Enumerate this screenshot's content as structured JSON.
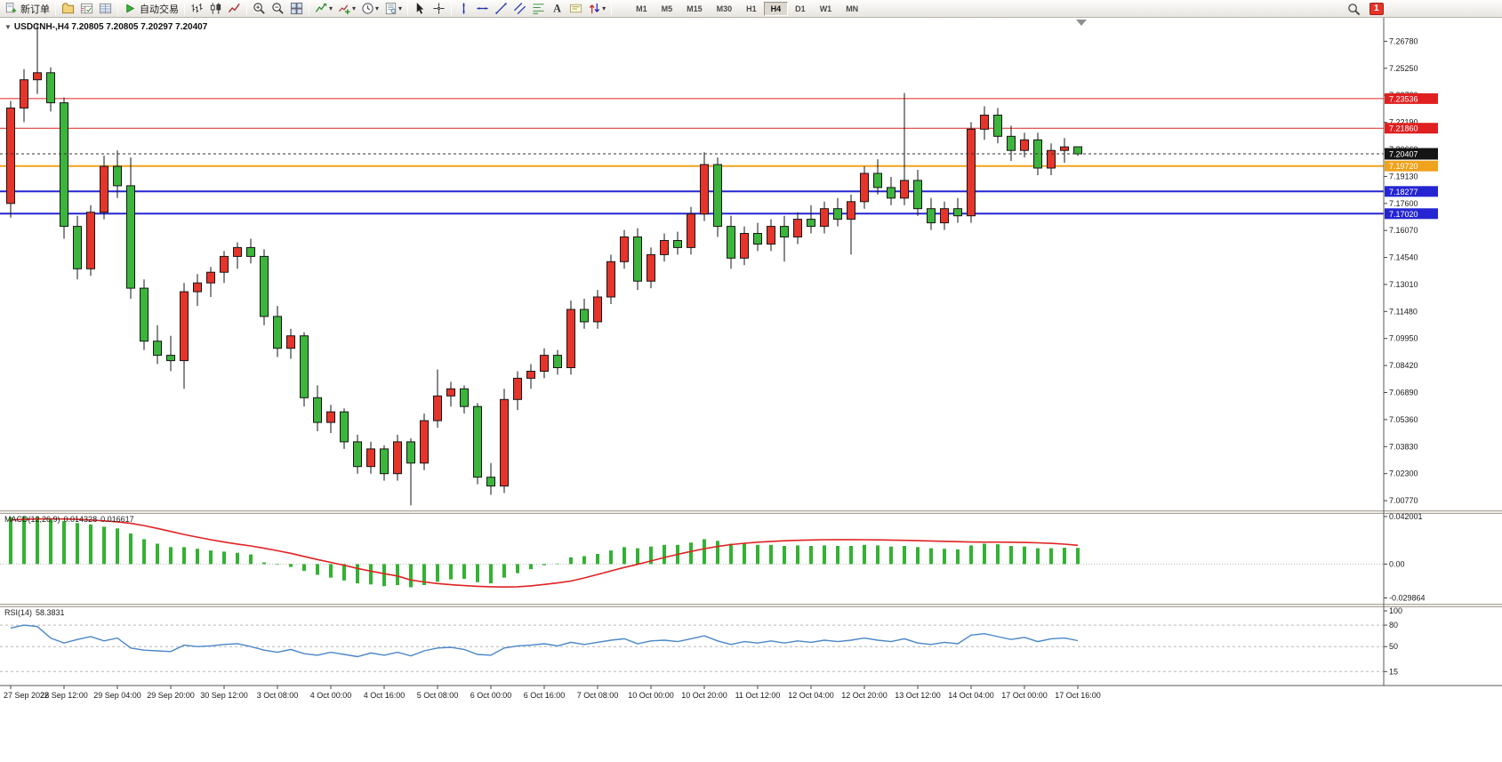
{
  "toolbar": {
    "items": [
      {
        "type": "button",
        "name": "new-order-button",
        "icon": "new-order-icon",
        "label": "新订单"
      },
      {
        "type": "separator"
      },
      {
        "type": "button",
        "name": "profiles-button",
        "icon": "profile-icon"
      },
      {
        "type": "button",
        "name": "market-watch-button",
        "icon": "market-watch-icon"
      },
      {
        "type": "button",
        "name": "data-window-button",
        "icon": "data-window-icon"
      },
      {
        "type": "separator"
      },
      {
        "type": "button",
        "name": "auto-trading-button",
        "icon": "play-icon",
        "label": "自动交易"
      },
      {
        "type": "separator"
      },
      {
        "type": "button",
        "name": "bar-chart-button",
        "icon": "bar-chart-icon"
      },
      {
        "type": "button",
        "name": "candlestick-chart-button",
        "icon": "candlestick-icon"
      },
      {
        "type": "button",
        "name": "line-chart-button",
        "icon": "line-chart-icon"
      },
      {
        "type": "separator"
      },
      {
        "type": "button",
        "name": "zoom-in-button",
        "icon": "zoom-in-icon"
      },
      {
        "type": "button",
        "name": "zoom-out-button",
        "icon": "zoom-out-icon"
      },
      {
        "type": "button",
        "name": "tile-windows-button",
        "icon": "tile-windows-icon"
      },
      {
        "type": "separator"
      },
      {
        "type": "button",
        "name": "indicators-button",
        "icon": "indicators-icon",
        "dropdown": true
      },
      {
        "type": "button",
        "name": "add-indicator-button",
        "icon": "add-indicator-icon",
        "dropdown": true
      },
      {
        "type": "button",
        "name": "period-selector-button",
        "icon": "clock-icon",
        "dropdown": true
      },
      {
        "type": "button",
        "name": "templates-button",
        "icon": "template-icon",
        "dropdown": true
      },
      {
        "type": "separator"
      },
      {
        "type": "button",
        "name": "cursor-button",
        "icon": "cursor-icon"
      },
      {
        "type": "button",
        "name": "crosshair-button",
        "icon": "crosshair-icon"
      },
      {
        "type": "separator"
      },
      {
        "type": "button",
        "name": "vertical-line-button",
        "icon": "vertical-line-icon"
      },
      {
        "type": "button",
        "name": "horizontal-line-button",
        "icon": "horizontal-line-icon"
      },
      {
        "type": "button",
        "name": "trendline-button",
        "icon": "trendline-icon"
      },
      {
        "type": "button",
        "name": "channel-button",
        "icon": "channel-icon"
      },
      {
        "type": "button",
        "name": "fibonacci-button",
        "icon": "fibonacci-icon"
      },
      {
        "type": "button",
        "name": "text-button",
        "icon": "text-icon"
      },
      {
        "type": "button",
        "name": "text-label-button",
        "icon": "text-label-icon"
      },
      {
        "type": "button",
        "name": "arrows-button",
        "icon": "arrows-icon",
        "dropdown": true
      },
      {
        "type": "separator"
      }
    ],
    "timeframes": [
      "M1",
      "M5",
      "M15",
      "M30",
      "H1",
      "H4",
      "D1",
      "W1",
      "MN"
    ],
    "active_timeframe": "H4",
    "dropdown_caret": "▾",
    "notification_badge": "1"
  },
  "chart": {
    "symbol_label": "USDCNH-,H4",
    "ohlc_label": "7.20805 7.20805 7.20297 7.20407",
    "one_click_caret": "▼",
    "current_price": {
      "value": 7.20407,
      "label": "7.20407",
      "color": "#141414"
    },
    "levels": [
      {
        "label": "7.23536",
        "value": 7.23536,
        "color": "#e02020",
        "width": 1
      },
      {
        "label": "7.21860",
        "value": 7.2186,
        "color": "#e02020",
        "width": 1
      },
      {
        "label": "7.19720",
        "value": 7.1972,
        "color": "#efa21b",
        "width": 2
      },
      {
        "label": "7.18277",
        "value": 7.18277,
        "color": "#2525d2",
        "width": 2
      },
      {
        "label": "7.17020",
        "value": 7.1702,
        "color": "#2525d2",
        "width": 2
      }
    ]
  },
  "macd": {
    "name": "MACD(12,26,9)",
    "value1": "0.014328",
    "value2": "0.016617"
  },
  "rsi": {
    "name": "RSI(14)",
    "value": "58.3831"
  },
  "chart_data": [
    {
      "type": "candlestick",
      "title": "USDCNH-,H4",
      "up_color": "#e5352b",
      "down_color": "#3cb53c",
      "ylim": [
        7.0022,
        7.2806
      ],
      "y_ticks": [
        "7.26780",
        "7.25250",
        "7.23720",
        "7.22190",
        "7.20660",
        "7.19130",
        "7.17600",
        "7.16070",
        "7.14540",
        "7.13010",
        "7.11480",
        "7.09950",
        "7.08420",
        "7.06890",
        "7.05360",
        "7.03830",
        "7.02300",
        "7.00770"
      ],
      "x_labels": [
        "27 Sep 2022",
        "28 Sep 12:00",
        "29 Sep 04:00",
        "29 Sep 20:00",
        "30 Sep 12:00",
        "3 Oct 08:00",
        "4 Oct 00:00",
        "4 Oct 16:00",
        "5 Oct 08:00",
        "6 Oct 00:00",
        "6 Oct 16:00",
        "7 Oct 08:00",
        "10 Oct 00:00",
        "10 Oct 20:00",
        "11 Oct 12:00",
        "12 Oct 04:00",
        "12 Oct 20:00",
        "13 Oct 12:00",
        "14 Oct 04:00",
        "17 Oct 00:00",
        "17 Oct 16:00"
      ],
      "label_every": 4,
      "candles": [
        [
          7.176,
          7.234,
          7.168,
          7.23
        ],
        [
          7.23,
          7.252,
          7.222,
          7.246
        ],
        [
          7.246,
          7.278,
          7.238,
          7.25
        ],
        [
          7.25,
          7.253,
          7.228,
          7.233
        ],
        [
          7.233,
          7.236,
          7.156,
          7.163
        ],
        [
          7.163,
          7.169,
          7.133,
          7.139
        ],
        [
          7.139,
          7.175,
          7.135,
          7.171
        ],
        [
          7.171,
          7.203,
          7.167,
          7.197
        ],
        [
          7.197,
          7.206,
          7.179,
          7.186
        ],
        [
          7.186,
          7.202,
          7.122,
          7.128
        ],
        [
          7.128,
          7.133,
          7.093,
          7.098
        ],
        [
          7.098,
          7.107,
          7.085,
          7.09
        ],
        [
          7.09,
          7.101,
          7.081,
          7.087
        ],
        [
          7.087,
          7.131,
          7.071,
          7.126
        ],
        [
          7.126,
          7.136,
          7.118,
          7.131
        ],
        [
          7.131,
          7.14,
          7.123,
          7.137
        ],
        [
          7.137,
          7.149,
          7.131,
          7.146
        ],
        [
          7.146,
          7.154,
          7.139,
          7.151
        ],
        [
          7.151,
          7.156,
          7.142,
          7.146
        ],
        [
          7.146,
          7.15,
          7.107,
          7.112
        ],
        [
          7.112,
          7.118,
          7.089,
          7.094
        ],
        [
          7.094,
          7.105,
          7.088,
          7.101
        ],
        [
          7.101,
          7.103,
          7.061,
          7.066
        ],
        [
          7.066,
          7.073,
          7.047,
          7.052
        ],
        [
          7.052,
          7.062,
          7.046,
          7.058
        ],
        [
          7.058,
          7.06,
          7.037,
          7.041
        ],
        [
          7.041,
          7.045,
          7.023,
          7.027
        ],
        [
          7.027,
          7.041,
          7.023,
          7.037
        ],
        [
          7.037,
          7.039,
          7.019,
          7.023
        ],
        [
          7.023,
          7.045,
          7.019,
          7.041
        ],
        [
          7.041,
          7.043,
          7.005,
          7.029
        ],
        [
          7.029,
          7.057,
          7.025,
          7.053
        ],
        [
          7.053,
          7.082,
          7.049,
          7.067
        ],
        [
          7.067,
          7.075,
          7.061,
          7.071
        ],
        [
          7.071,
          7.073,
          7.057,
          7.061
        ],
        [
          7.061,
          7.063,
          7.017,
          7.021
        ],
        [
          7.021,
          7.029,
          7.011,
          7.016
        ],
        [
          7.016,
          7.071,
          7.012,
          7.065
        ],
        [
          7.065,
          7.081,
          7.059,
          7.077
        ],
        [
          7.077,
          7.085,
          7.071,
          7.081
        ],
        [
          7.081,
          7.094,
          7.077,
          7.09
        ],
        [
          7.09,
          7.093,
          7.079,
          7.083
        ],
        [
          7.083,
          7.121,
          7.079,
          7.116
        ],
        [
          7.116,
          7.122,
          7.105,
          7.109
        ],
        [
          7.109,
          7.127,
          7.105,
          7.123
        ],
        [
          7.123,
          7.147,
          7.119,
          7.143
        ],
        [
          7.143,
          7.161,
          7.139,
          7.157
        ],
        [
          7.157,
          7.162,
          7.127,
          7.132
        ],
        [
          7.132,
          7.151,
          7.128,
          7.147
        ],
        [
          7.147,
          7.159,
          7.143,
          7.155
        ],
        [
          7.155,
          7.16,
          7.147,
          7.151
        ],
        [
          7.151,
          7.174,
          7.147,
          7.17
        ],
        [
          7.17,
          7.205,
          7.166,
          7.198
        ],
        [
          7.198,
          7.202,
          7.157,
          7.163
        ],
        [
          7.163,
          7.169,
          7.139,
          7.145
        ],
        [
          7.145,
          7.163,
          7.141,
          7.159
        ],
        [
          7.159,
          7.165,
          7.149,
          7.153
        ],
        [
          7.153,
          7.167,
          7.149,
          7.163
        ],
        [
          7.163,
          7.169,
          7.143,
          7.157
        ],
        [
          7.157,
          7.171,
          7.153,
          7.167
        ],
        [
          7.167,
          7.175,
          7.159,
          7.163
        ],
        [
          7.163,
          7.177,
          7.159,
          7.173
        ],
        [
          7.173,
          7.179,
          7.163,
          7.167
        ],
        [
          7.167,
          7.181,
          7.147,
          7.177
        ],
        [
          7.177,
          7.197,
          7.173,
          7.193
        ],
        [
          7.193,
          7.201,
          7.181,
          7.185
        ],
        [
          7.185,
          7.191,
          7.175,
          7.179
        ],
        [
          7.179,
          7.2385,
          7.175,
          7.189
        ],
        [
          7.189,
          7.195,
          7.169,
          7.173
        ],
        [
          7.173,
          7.179,
          7.161,
          7.165
        ],
        [
          7.165,
          7.177,
          7.161,
          7.173
        ],
        [
          7.173,
          7.179,
          7.165,
          7.169
        ],
        [
          7.169,
          7.222,
          7.165,
          7.218
        ],
        [
          7.218,
          7.231,
          7.212,
          7.226
        ],
        [
          7.226,
          7.23,
          7.21,
          7.214
        ],
        [
          7.214,
          7.22,
          7.2,
          7.206
        ],
        [
          7.206,
          7.216,
          7.202,
          7.212
        ],
        [
          7.212,
          7.216,
          7.192,
          7.196
        ],
        [
          7.196,
          7.21,
          7.192,
          7.206
        ],
        [
          7.206,
          7.213,
          7.199,
          7.208
        ],
        [
          7.20805,
          7.20805,
          7.20297,
          7.20407
        ]
      ]
    },
    {
      "type": "bar",
      "title": "MACD(12,26,9)",
      "current_values": [
        0.014328,
        0.016617
      ],
      "histogram_color": "#33b233",
      "signal_color": "#e02222",
      "ylim": [
        -0.035,
        0.0443
      ],
      "y_ticks": [
        "0.042001",
        "0.00",
        "-0.029864"
      ],
      "y_tick_values": [
        0.042001,
        0,
        -0.029864
      ],
      "histogram": [
        0.0415,
        0.042,
        0.0418,
        0.0405,
        0.038,
        0.0362,
        0.035,
        0.033,
        0.0315,
        0.027,
        0.022,
        0.018,
        0.015,
        0.015,
        0.0135,
        0.012,
        0.011,
        0.01,
        0.0085,
        0.0015,
        -0.0005,
        -0.0025,
        -0.006,
        -0.0095,
        -0.012,
        -0.0145,
        -0.017,
        -0.018,
        -0.0195,
        -0.0185,
        -0.0205,
        -0.0185,
        -0.0155,
        -0.0135,
        -0.013,
        -0.016,
        -0.017,
        -0.012,
        -0.008,
        -0.0045,
        -0.001,
        0.0005,
        0.006,
        0.007,
        0.009,
        0.012,
        0.015,
        0.014,
        0.0155,
        0.017,
        0.017,
        0.019,
        0.022,
        0.0205,
        0.018,
        0.018,
        0.017,
        0.017,
        0.016,
        0.0165,
        0.016,
        0.0165,
        0.016,
        0.016,
        0.017,
        0.0165,
        0.0155,
        0.016,
        0.015,
        0.014,
        0.0135,
        0.013,
        0.0165,
        0.018,
        0.0175,
        0.016,
        0.0155,
        0.014,
        0.014,
        0.0145,
        0.0143
      ],
      "signal": [
        0.039,
        0.0395,
        0.0398,
        0.04,
        0.0398,
        0.0395,
        0.039,
        0.0382,
        0.0373,
        0.036,
        0.034,
        0.0315,
        0.0288,
        0.0262,
        0.0238,
        0.0215,
        0.0195,
        0.0177,
        0.016,
        0.014,
        0.0118,
        0.0095,
        0.0068,
        0.004,
        0.0015,
        -0.001,
        -0.0038,
        -0.0062,
        -0.0085,
        -0.0105,
        -0.014,
        -0.0158,
        -0.0172,
        -0.0182,
        -0.019,
        -0.0196,
        -0.02,
        -0.0202,
        -0.02,
        -0.0192,
        -0.018,
        -0.0166,
        -0.015,
        -0.0122,
        -0.0092,
        -0.006,
        -0.003,
        -0.0002,
        0.0028,
        0.0058,
        0.0086,
        0.0112,
        0.0136,
        0.0156,
        0.0172,
        0.0184,
        0.0193,
        0.02,
        0.0206,
        0.021,
        0.0213,
        0.0215,
        0.0216,
        0.0216,
        0.0215,
        0.0214,
        0.0212,
        0.021,
        0.0207,
        0.0204,
        0.0201,
        0.0198,
        0.0195,
        0.0194,
        0.0194,
        0.0193,
        0.0191,
        0.0188,
        0.0183,
        0.0176,
        0.0166
      ]
    },
    {
      "type": "line",
      "title": "RSI(14)",
      "current_value": 58.3831,
      "line_color": "#4a86c8",
      "levels": [
        80,
        50,
        15
      ],
      "ylim": [
        -2,
        105
      ],
      "y_ticks": [
        "100",
        "80",
        "50",
        "15"
      ],
      "y_tick_values": [
        100,
        80,
        50,
        15
      ],
      "values": [
        76,
        80,
        78,
        62,
        55,
        60,
        64,
        58,
        62,
        48,
        45,
        44,
        43,
        52,
        50,
        51,
        53,
        54,
        50,
        45,
        42,
        46,
        40,
        38,
        42,
        39,
        36,
        41,
        38,
        42,
        37,
        44,
        48,
        49,
        46,
        39,
        38,
        48,
        51,
        52,
        54,
        51,
        56,
        53,
        56,
        59,
        61,
        54,
        58,
        59,
        57,
        61,
        65,
        58,
        53,
        57,
        55,
        58,
        55,
        58,
        56,
        59,
        57,
        59,
        62,
        59,
        57,
        61,
        55,
        53,
        56,
        54,
        66,
        68,
        64,
        60,
        63,
        57,
        61,
        62,
        58.38
      ]
    }
  ]
}
